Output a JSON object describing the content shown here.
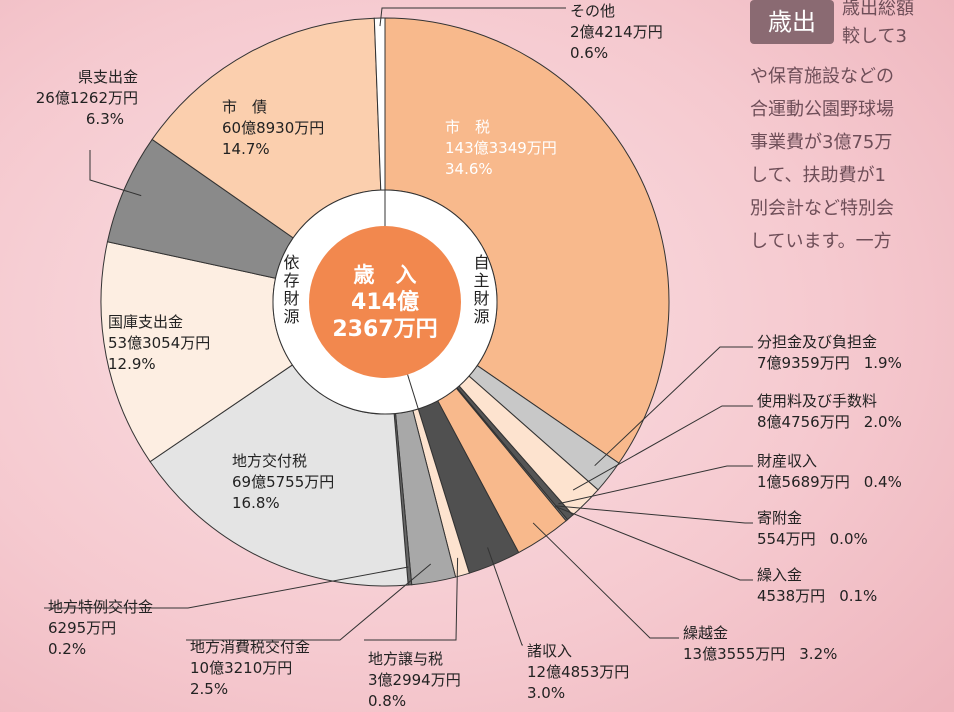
{
  "chart_data": {
    "type": "pie",
    "categories": [
      "市　税",
      "分担金及び負担金",
      "使用料及び手数料",
      "財産収入",
      "寄附金",
      "繰入金",
      "繰越金",
      "諸収入",
      "地方譲与税",
      "地方消費税交付金",
      "地方特例交付金",
      "地方交付税",
      "国庫支出金",
      "県支出金",
      "市　債",
      "その他"
    ],
    "values": [
      34.6,
      1.9,
      2.0,
      0.4,
      0.0,
      0.1,
      3.2,
      3.0,
      0.8,
      2.5,
      0.2,
      16.8,
      12.9,
      6.3,
      14.7,
      0.6
    ],
    "value_labels": [
      "34.6%",
      "1.9%",
      "2.0%",
      "0.4%",
      "0.0%",
      "0.1%",
      "3.2%",
      "3.0%",
      "0.8%",
      "2.5%",
      "0.2%",
      "16.8%",
      "12.9%",
      "6.3%",
      "14.7%",
      "0.6%"
    ],
    "amounts": [
      "143億3349万円",
      "7億9359万円",
      "8億4756万円",
      "1億5689万円",
      "554万円",
      "4538万円",
      "13億3555万円",
      "12億4853万円",
      "3億2994万円",
      "10億3210万円",
      "6295万円",
      "69億5755万円",
      "53億3054万円",
      "26億1262万円",
      "60億8930万円",
      "2億4214万円"
    ],
    "colors": [
      "#f8b98c",
      "#c8c8c8",
      "#fde3cf",
      "#555555",
      "#333333",
      "#777777",
      "#f8b98c",
      "#505050",
      "#fde3cf",
      "#a8a8a8",
      "#666666",
      "#e4e4e4",
      "#fdeee2",
      "#8a8a8a",
      "#fbcfae",
      "#ffffff"
    ],
    "center_label": [
      "歳　入",
      "414億",
      "2367万円"
    ],
    "inner_labels": [
      "依存財源",
      "自主財源"
    ]
  },
  "side_text": {
    "badge": "歳出",
    "lines": [
      "歳出総額",
      "較して3",
      "や保育施設などの",
      "合運動公園野球場",
      "事業費が3億75万",
      "して、扶助費が1",
      "別会計など特別会",
      "しています。一方"
    ]
  }
}
